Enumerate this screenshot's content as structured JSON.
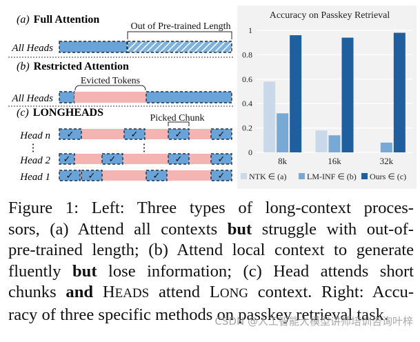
{
  "left_panel": {
    "section_a": {
      "label_prefix": "(a)",
      "label_title": "Full Attention",
      "row_label": "All Heads",
      "annotation": "Out of Pre-trained Length"
    },
    "section_b": {
      "label_prefix": "(b)",
      "label_title": "Restricted Attention",
      "row_label": "All Heads",
      "annotation": "Evicted Tokens"
    },
    "section_c": {
      "label_prefix": "(c)",
      "label_title": "LONGHEADS",
      "annotation": "Picked Chunk",
      "rows": [
        "Head n",
        "Head 2",
        "Head 1"
      ],
      "ellipsis": "⋮",
      "check": "✓"
    }
  },
  "chart_data": {
    "type": "bar",
    "title": "Accuracy on Passkey Retrieval",
    "categories": [
      "8k",
      "16k",
      "32k"
    ],
    "series": [
      {
        "name": "NTK",
        "legend_label": "NTK ∈ (a)",
        "color": "#c9d9ea",
        "values": [
          0.58,
          0.18,
          0.0
        ]
      },
      {
        "name": "LM-INF",
        "legend_label": "LM-INF ∈ (b)",
        "color": "#77a9d4",
        "values": [
          0.32,
          0.14,
          0.08
        ]
      },
      {
        "name": "Ours",
        "legend_label": "Ours ∈ (c)",
        "color": "#1f5f9e",
        "values": [
          0.96,
          0.94,
          0.98
        ]
      }
    ],
    "yticks": [
      "0",
      "0.2",
      "0.4",
      "0.6",
      "0.8",
      "1"
    ],
    "ylim": [
      0,
      1
    ],
    "xlabel": "",
    "ylabel": "",
    "grid": true,
    "legend": "bottom"
  },
  "caption": {
    "l1": "Figure 1: Left: Three types of long-context proces-",
    "l2a": "sors, (a) Attend all contexts ",
    "l2b": "but",
    "l2c": " struggle with out-of-",
    "l3": "pre-trained length; (b) Attend local context to generate",
    "l4a": "fluently ",
    "l4b": "but",
    "l4c": " lose information; (c) Head attends short",
    "l5a": "chunks ",
    "l5b": "and",
    "l5c_big": " H",
    "l5c_small": "EADS",
    "l5d": " attend ",
    "l5e_big": "L",
    "l5e_small": "ONG",
    "l5f": " context. Right: Accu-",
    "l6": "racy of three specific methods on passkey retrieval task."
  },
  "watermark": "CSDN @人工智能大模型讲师培训咨询叶梓"
}
